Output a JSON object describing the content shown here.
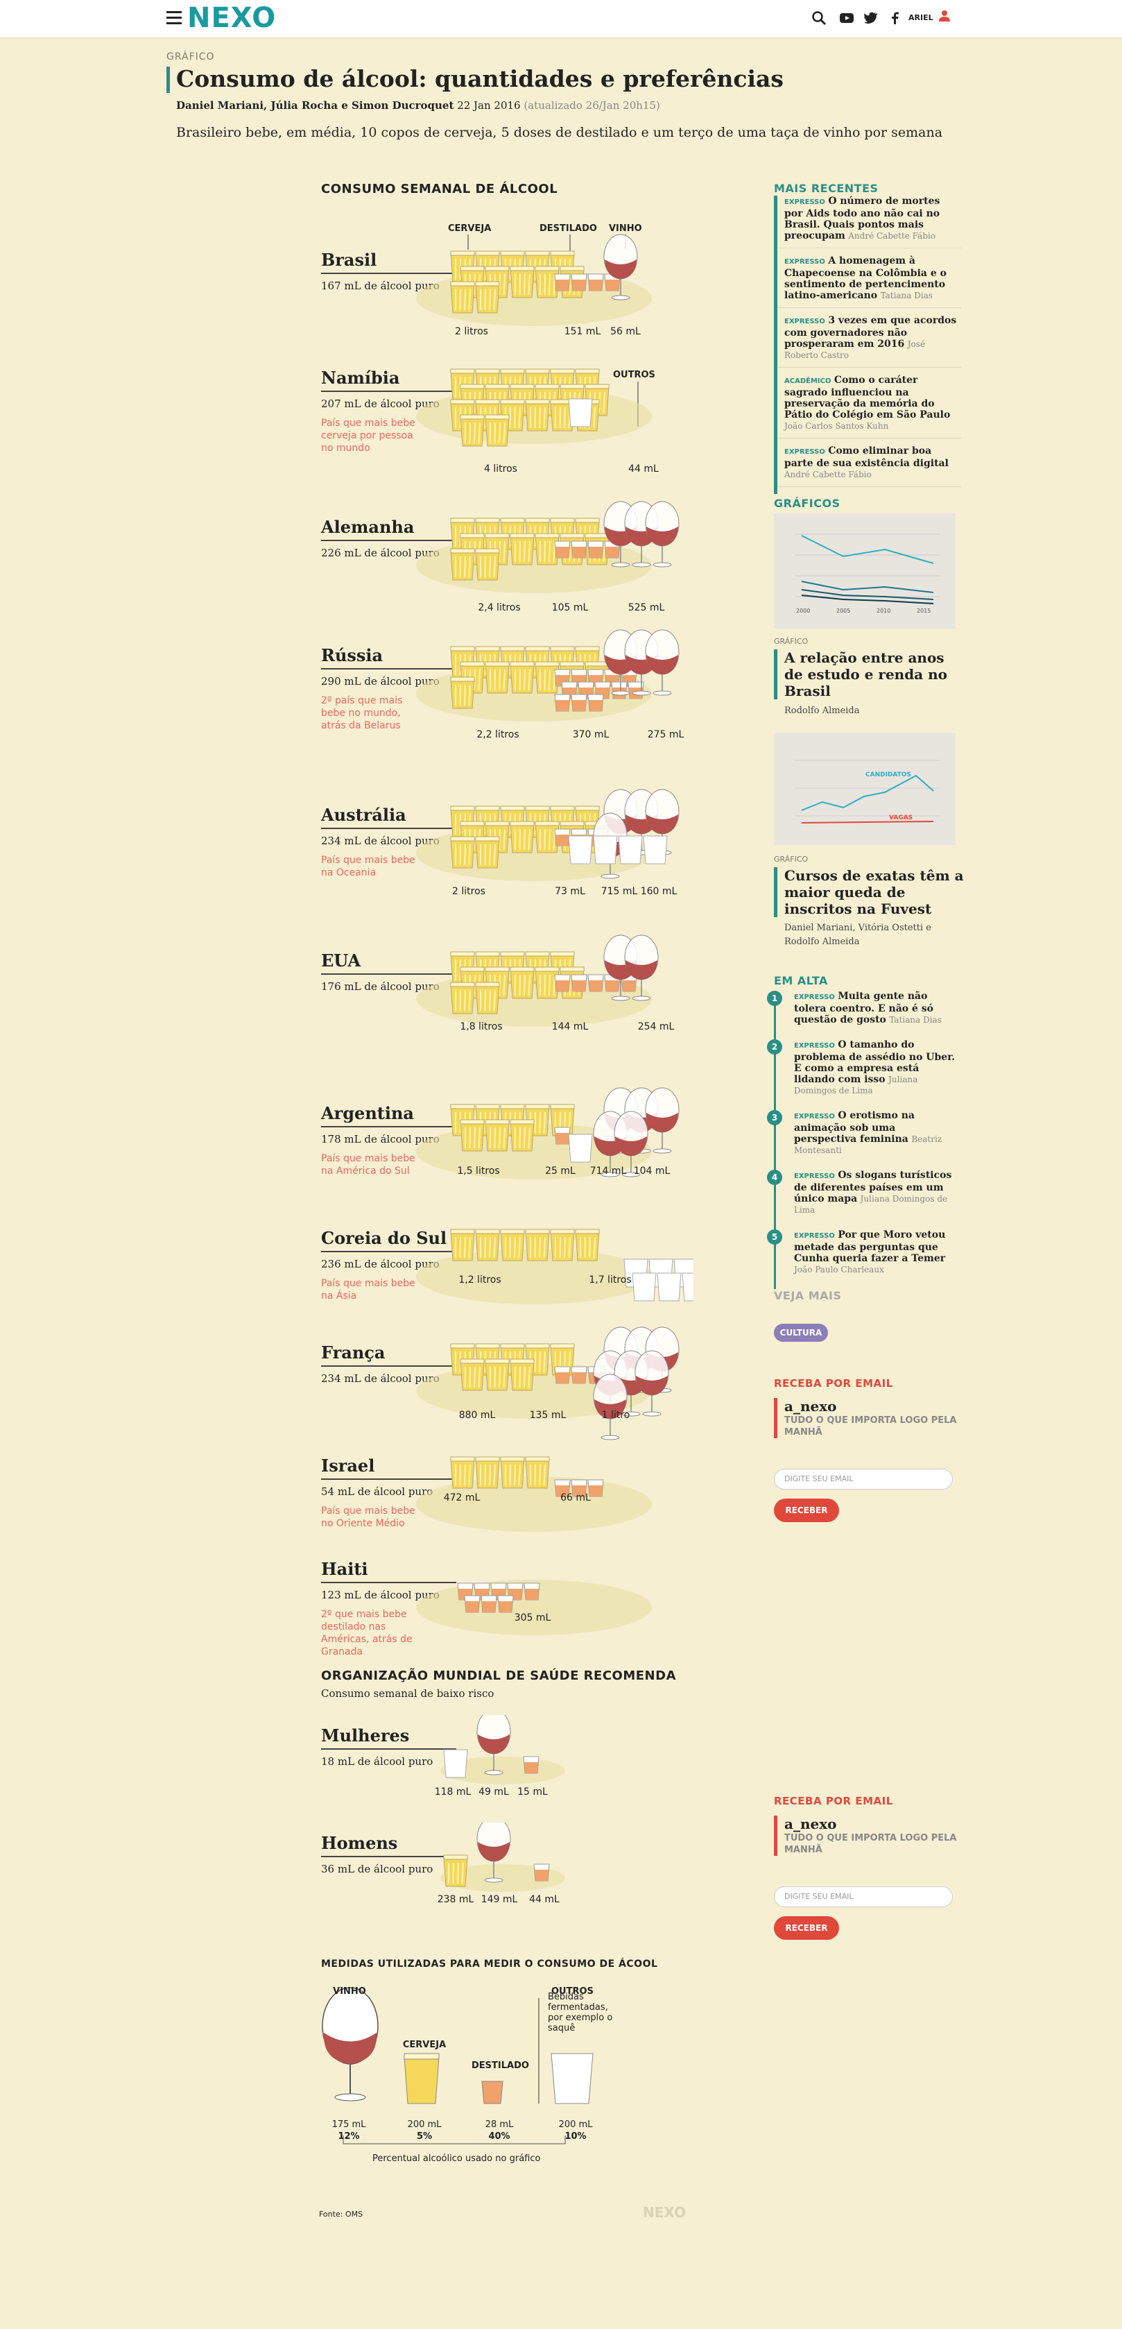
{
  "header": {
    "logo": "NEXO",
    "user": "ARIEL",
    "kicker": "GRÁFICO",
    "title": "Consumo de álcool: quantidades e preferências",
    "authors": "Daniel Mariani, Júlia Rocha e Simon Ducroquet",
    "date": "22 Jan 2016",
    "updated": "(atualizado 26/Jan 20h15)",
    "lede": "Brasileiro bebe, em média, 10 copos de cerveja, 5 doses de destilado e um terço de uma taça de vinho por semana"
  },
  "chart": {
    "title": "CONSUMO SEMANAL DE ÁLCOOL",
    "col_cerveja": "CERVEJA",
    "col_destilado": "DESTILADO",
    "col_vinho": "VINHO",
    "col_outros": "OUTROS",
    "countries": [
      {
        "name": "Brasil",
        "ml": "167 mL de álcool puro",
        "note": "",
        "v": [
          "2 litros",
          "151 mL",
          "56 mL"
        ]
      },
      {
        "name": "Namíbia",
        "ml": "207 mL de álcool puro",
        "note": "País que mais bebe cerveja por pessoa no mundo",
        "v": [
          "4 litros",
          "44 mL"
        ]
      },
      {
        "name": "Alemanha",
        "ml": "226 mL de álcool puro",
        "note": "",
        "v": [
          "2,4 litros",
          "105 mL",
          "525 mL"
        ]
      },
      {
        "name": "Rússia",
        "ml": "290 mL de álcool puro",
        "note": "2º país que mais bebe no mundo, atrás da Belarus",
        "v": [
          "2,2 litros",
          "370 mL",
          "275 mL"
        ]
      },
      {
        "name": "Austrália",
        "ml": "234 mL de álcool puro",
        "note": "País que mais bebe na Oceania",
        "v": [
          "2 litros",
          "73 mL",
          "715 mL",
          "160 mL"
        ]
      },
      {
        "name": "EUA",
        "ml": "176 mL de álcool puro",
        "note": "",
        "v": [
          "1,8 litros",
          "144 mL",
          "254 mL"
        ]
      },
      {
        "name": "Argentina",
        "ml": "178 mL de álcool puro",
        "note": "País que mais bebe na América do Sul",
        "v": [
          "1,5 litros",
          "25 mL",
          "714 mL",
          "104 mL"
        ]
      },
      {
        "name": "Coreia do Sul",
        "ml": "236 mL de álcool puro",
        "note": "País que mais bebe na Ásia",
        "v": [
          "1,2 litros",
          "1,7 litros"
        ]
      },
      {
        "name": "França",
        "ml": "234 mL de álcool puro",
        "note": "",
        "v": [
          "880 mL",
          "135 mL",
          "1 litro"
        ]
      },
      {
        "name": "Israel",
        "ml": "54 mL de álcool puro",
        "note": "País que mais bebe no Oriente Médio",
        "v": [
          "472 mL",
          "66 mL"
        ]
      },
      {
        "name": "Haiti",
        "ml": "123 mL de álcool puro",
        "note": "2º que mais bebe destilado nas Américas, atrás de Granada",
        "v": [
          "305 mL"
        ]
      }
    ],
    "oms_title": "ORGANIZAÇÃO MUNDIAL DE SAÚDE RECOMENDA",
    "oms_sub": "Consumo semanal de baixo risco",
    "oms": [
      {
        "name": "Mulheres",
        "ml": "18 mL de álcool puro",
        "v": [
          "118 mL",
          "49 mL",
          "15 mL"
        ]
      },
      {
        "name": "Homens",
        "ml": "36 mL de álcool puro",
        "v": [
          "238 mL",
          "149 mL",
          "44 mL"
        ]
      }
    ],
    "measures_title": "MEDIDAS UTILIZADAS PARA MEDIR O CONSUMO DE ÁCOOL",
    "measures": [
      {
        "label": "VINHO",
        "vol": "175 mL",
        "pct": "12%"
      },
      {
        "label": "CERVEJA",
        "vol": "200 mL",
        "pct": "5%"
      },
      {
        "label": "DESTILADO",
        "vol": "28 mL",
        "pct": "40%"
      },
      {
        "label": "OUTROS",
        "vol": "200 mL",
        "pct": "10%"
      }
    ],
    "outros_desc": "Bebidas fermentadas, por exemplo o saquê",
    "pct_note": "Percentual alcoólico usado no gráfico",
    "source": "Fonte: OMS",
    "footer_logo": "NEXO"
  },
  "sidebar": {
    "recentes_title": "MAIS RECENTES",
    "recentes": [
      {
        "tag": "EXPRESSO",
        "title": "O número de mortes por Aids todo ano não cai no Brasil. Quais pontos mais preocupam",
        "author": "André Cabette Fábio"
      },
      {
        "tag": "EXPRESSO",
        "title": "A homenagem à Chapecoense na Colômbia e o sentimento de pertencimento latino-americano",
        "author": "Tatiana Dias"
      },
      {
        "tag": "EXPRESSO",
        "title": "3 vezes em que acordos com governadores não prosperaram em 2016",
        "author": "José Roberto Castro"
      },
      {
        "tag": "ACADÊMICO",
        "title": "Como o caráter sagrado influenciou na preservação da memória do Pátio do Colégio em São Paulo",
        "author": "João Carlos Santos Kuhn"
      },
      {
        "tag": "EXPRESSO",
        "title": "Como eliminar boa parte de sua existência digital",
        "author": "André Cabette Fábio"
      }
    ],
    "graficos_title": "GRÁFICOS",
    "graficos": [
      {
        "tag": "GRÁFICO",
        "title": "A relação entre anos de estudo e renda no Brasil",
        "author": "Rodolfo Almeida",
        "thumb_labels": [
          "2000",
          "2005",
          "2010",
          "2015"
        ]
      },
      {
        "tag": "GRÁFICO",
        "title": "Cursos de exatas têm a maior queda de inscritos na Fuvest",
        "author": "Daniel Mariani, Vitória Ostetti e Rodolfo Almeida",
        "thumb_labels": [
          "CANDIDATOS",
          "VAGAS"
        ]
      }
    ],
    "alta_title": "EM ALTA",
    "alta": [
      {
        "n": "1",
        "tag": "EXPRESSO",
        "title": "Muita gente não tolera coentro. E não é só questão de gosto",
        "author": "Tatiana Dias"
      },
      {
        "n": "2",
        "tag": "EXPRESSO",
        "title": "O tamanho do problema de assédio no Uber. E como a empresa está lidando com isso",
        "author": "Juliana Domingos de Lima"
      },
      {
        "n": "3",
        "tag": "EXPRESSO",
        "title": "O erotismo na animação sob uma perspectiva feminina",
        "author": "Beatriz Montesanti"
      },
      {
        "n": "4",
        "tag": "EXPRESSO",
        "title": "Os slogans turísticos de diferentes países em um único mapa",
        "author": "Juliana Domingos de Lima"
      },
      {
        "n": "5",
        "tag": "EXPRESSO",
        "title": "Por que Moro vetou metade das perguntas que Cunha queria fazer a Temer",
        "author": "João Paulo Charleaux"
      }
    ],
    "veja_title": "VEJA MAIS",
    "veja_tag": "CULTURA",
    "newsletter_title": "RECEBA POR EMAIL",
    "newsletter_name": "a_nexo",
    "newsletter_tagline": "TUDO O QUE IMPORTA LOGO PELA MANHÃ",
    "email_placeholder": "DIGITE SEU EMAIL",
    "submit": "RECEBER"
  },
  "colors": {
    "accent": "#2a8f86",
    "red": "#e0483c",
    "beer": "#f5d85a",
    "wine": "#b5504c",
    "spirit": "#f0a26a",
    "bg": "#f6efd2"
  }
}
